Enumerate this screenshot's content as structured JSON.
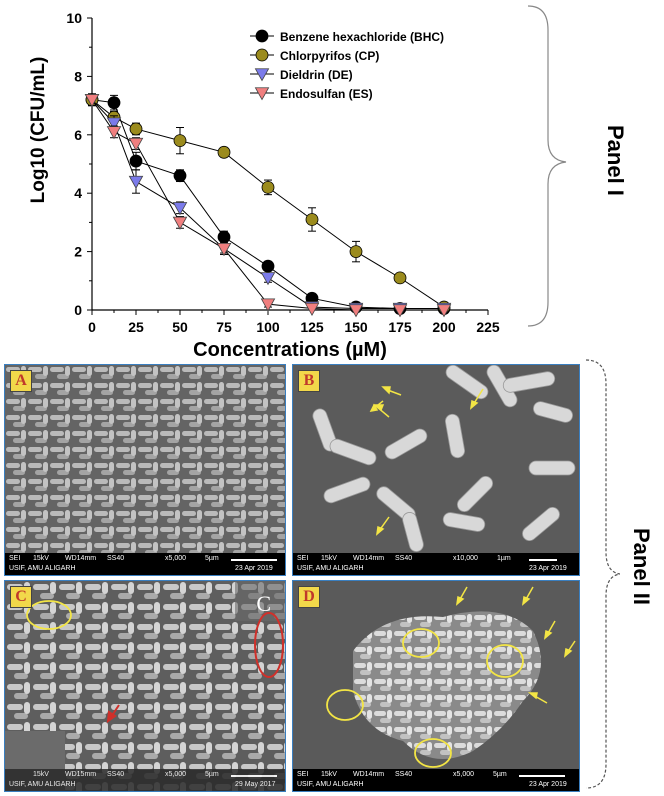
{
  "chart_data": {
    "type": "line",
    "xlabel": "Concentrations (µM)",
    "ylabel": "Log10 (CFU/mL)",
    "xlim": [
      0,
      225
    ],
    "ylim": [
      0,
      10
    ],
    "x_ticks": [
      "0",
      "25",
      "50",
      "75",
      "100",
      "125",
      "150",
      "175",
      "200",
      "225"
    ],
    "y_ticks": [
      "0",
      "2",
      "4",
      "6",
      "8",
      "10"
    ],
    "legend_position": "top-right",
    "series": [
      {
        "name": "Benzene hexachloride (BHC)",
        "color": "#000000",
        "marker": "circle",
        "x": [
          0,
          12.5,
          25,
          50,
          75,
          100,
          125,
          150,
          175,
          200
        ],
        "y": [
          7.2,
          7.1,
          5.1,
          4.6,
          2.5,
          1.5,
          0.4,
          0.1,
          0.05,
          0.05
        ],
        "err": [
          0.2,
          0.25,
          0.3,
          0.2,
          0.2,
          0.15,
          0.1,
          0.05,
          0.05,
          0.05
        ]
      },
      {
        "name": "Chlorpyrifos (CP)",
        "color": "#9b8b1d",
        "marker": "circle",
        "x": [
          0,
          12.5,
          25,
          50,
          75,
          100,
          125,
          150,
          175,
          200
        ],
        "y": [
          7.2,
          6.6,
          6.2,
          5.8,
          5.4,
          4.2,
          3.1,
          2.0,
          1.1,
          0.1
        ],
        "err": [
          0.2,
          0.2,
          0.2,
          0.45,
          0.15,
          0.25,
          0.4,
          0.35,
          0.15,
          0.1
        ]
      },
      {
        "name": "Dieldrin (DE)",
        "color": "#7b7bea",
        "marker": "triangle-down",
        "x": [
          0,
          12.5,
          25,
          50,
          75,
          100,
          125,
          150,
          175,
          200
        ],
        "y": [
          7.2,
          6.4,
          4.4,
          3.5,
          2.1,
          1.1,
          0.1,
          0.05,
          0.05,
          0.05
        ],
        "err": [
          0.2,
          0.25,
          0.4,
          0.2,
          0.2,
          0.15,
          0.05,
          0.05,
          0.05,
          0.05
        ]
      },
      {
        "name": "Endosulfan (ES)",
        "color": "#f07f7f",
        "marker": "triangle-down",
        "x": [
          0,
          12.5,
          25,
          50,
          75,
          100,
          125,
          150,
          175,
          200
        ],
        "y": [
          7.2,
          6.1,
          5.7,
          3.0,
          2.1,
          0.2,
          0.05,
          0.0,
          0.0,
          0.0
        ],
        "err": [
          0.2,
          0.2,
          0.2,
          0.2,
          0.15,
          0.1,
          0.05,
          0.05,
          0.05,
          0.05
        ]
      }
    ]
  },
  "panel_labels": {
    "panel1": "Panel I",
    "panel2": "Panel II"
  },
  "sem_images": [
    {
      "letter": "A",
      "info1": [
        "SEI",
        "15kV",
        "WD14mm",
        "SS40",
        "x5,000",
        "5µm"
      ],
      "info2_left": "USIF, AMU ALIGARH",
      "date": "23 Apr 2019",
      "inner_label": ""
    },
    {
      "letter": "B",
      "info1": [
        "SEI",
        "15kV",
        "WD14mm",
        "SS40",
        "x10,000",
        "1µm"
      ],
      "info2_left": "USIF, AMU ALIGARH",
      "date": "23 Apr 2019",
      "inner_label": ""
    },
    {
      "letter": "C",
      "info1": [
        "",
        "15kV",
        "WD15mm",
        "SS40",
        "x5,000",
        "5µm"
      ],
      "info2_left": "USIF, AMU ALIGARH",
      "date": "29 May 2017",
      "inner_label": "C"
    },
    {
      "letter": "D",
      "info1": [
        "SEI",
        "15kV",
        "WD14mm",
        "SS40",
        "x5,000",
        "5µm"
      ],
      "info2_left": "USIF, AMU ALIGARH",
      "date": "23 Apr 2019",
      "inner_label": ""
    }
  ],
  "colors": {
    "frame": "#3a7fc0",
    "letter_bg": "#f2d84a",
    "letter_text": "#c0392b",
    "annotation_yellow": "#f3e545",
    "annotation_red": "#d0302a"
  }
}
